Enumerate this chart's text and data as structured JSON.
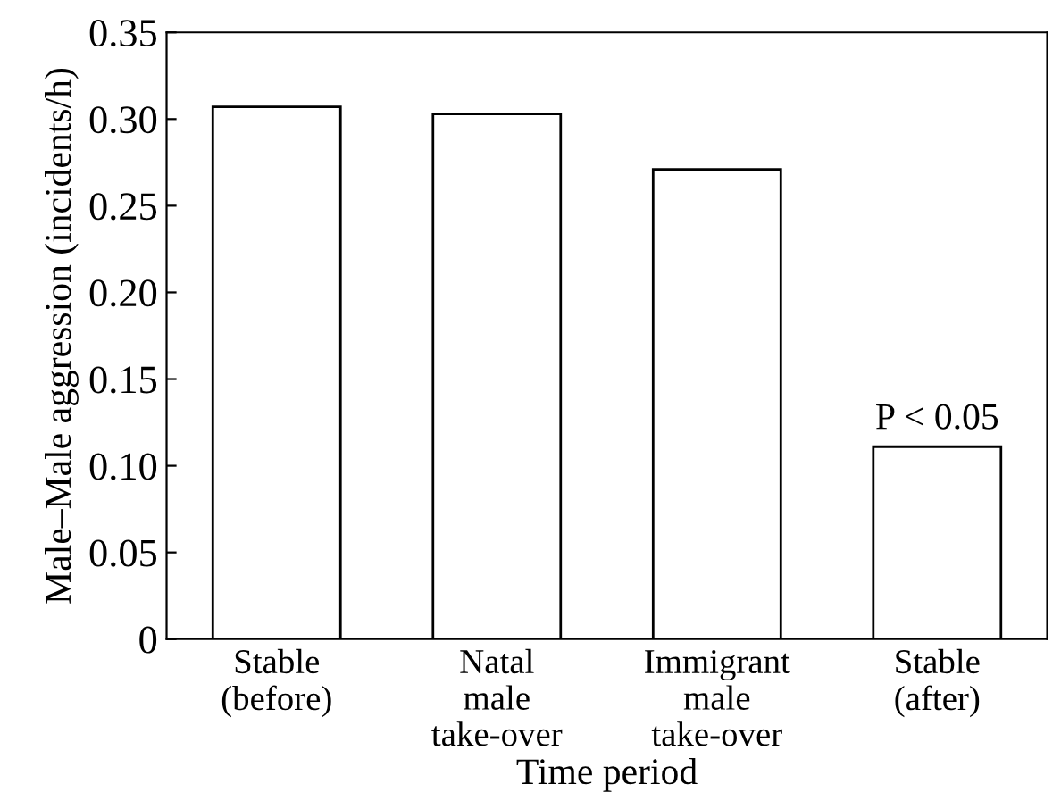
{
  "chart_data": {
    "type": "bar",
    "xlabel": "Time period",
    "ylabel": "Male–Male aggression (incidents/h)",
    "categories": [
      "Stable\n(before)",
      "Natal\nmale\ntake-over",
      "Immigrant\nmale\ntake-over",
      "Stable\n(after)"
    ],
    "values": [
      0.307,
      0.303,
      0.271,
      0.111
    ],
    "color": "#ffffff",
    "ylim": [
      0,
      0.35
    ],
    "yticks": [
      {
        "value": 0,
        "label": "0"
      },
      0.05,
      {
        "value": 0.1,
        "label": "0.10"
      },
      0.15,
      {
        "value": 0.2,
        "label": "0.20"
      },
      0.25,
      {
        "value": 0.3,
        "label": "0.30"
      },
      0.35
    ],
    "grid": false,
    "legend": false,
    "annotations": [
      {
        "text": "P < 0.05",
        "x": "Stable\n(after)",
        "y": 0.111
      }
    ]
  }
}
